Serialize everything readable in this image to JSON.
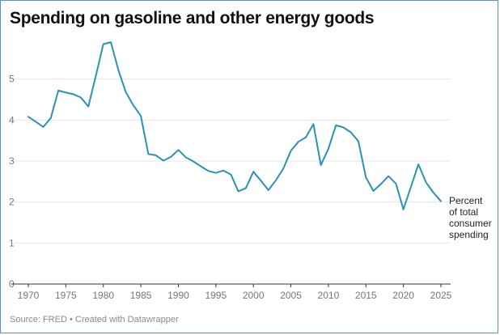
{
  "title": "Spending on gasoline and other energy goods",
  "source": "Source: FRED • Created with Datawrapper",
  "colors": {
    "line": "#2a93b3",
    "grid": "#e6e6e6",
    "axis": "#333333",
    "tick_text": "#777777",
    "frame": "#5b8fcf"
  },
  "chart_data": {
    "type": "line",
    "title": "Spending on gasoline and other energy goods",
    "xlabel": "",
    "ylabel": "",
    "xlim": [
      1970,
      2025
    ],
    "ylim": [
      0,
      6
    ],
    "x_ticks": [
      1970,
      1975,
      1980,
      1985,
      1990,
      1995,
      2000,
      2005,
      2010,
      2015,
      2020,
      2025
    ],
    "y_ticks": [
      0,
      1,
      2,
      3,
      4,
      5
    ],
    "grid": "horizontal",
    "series": [
      {
        "label_lines": [
          "Percent",
          "of total",
          "consumer",
          "spending"
        ],
        "x": [
          1970,
          1971,
          1972,
          1973,
          1974,
          1975,
          1976,
          1977,
          1978,
          1979,
          1980,
          1981,
          1982,
          1983,
          1984,
          1985,
          1986,
          1987,
          1988,
          1989,
          1990,
          1991,
          1992,
          1993,
          1994,
          1995,
          1996,
          1997,
          1998,
          1999,
          2000,
          2001,
          2002,
          2003,
          2004,
          2005,
          2006,
          2007,
          2008,
          2009,
          2010,
          2011,
          2012,
          2013,
          2014,
          2015,
          2016,
          2017,
          2018,
          2019,
          2020,
          2021,
          2022,
          2023,
          2024,
          2025
        ],
        "y": [
          4.08,
          3.96,
          3.83,
          4.05,
          4.72,
          4.67,
          4.63,
          4.55,
          4.33,
          5.08,
          5.85,
          5.9,
          5.22,
          4.68,
          4.36,
          4.1,
          3.17,
          3.14,
          3.01,
          3.1,
          3.27,
          3.09,
          2.99,
          2.87,
          2.76,
          2.71,
          2.77,
          2.67,
          2.26,
          2.34,
          2.74,
          2.52,
          2.29,
          2.53,
          2.82,
          3.25,
          3.47,
          3.58,
          3.9,
          2.9,
          3.3,
          3.87,
          3.82,
          3.7,
          3.48,
          2.6,
          2.27,
          2.44,
          2.63,
          2.45,
          1.82,
          2.37,
          2.92,
          2.48,
          2.23,
          2.02
        ]
      }
    ]
  }
}
